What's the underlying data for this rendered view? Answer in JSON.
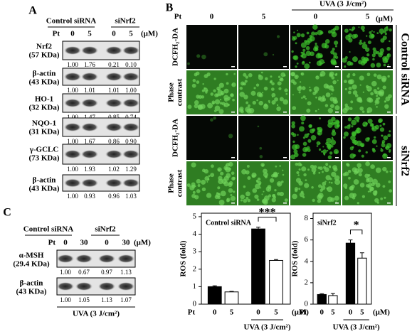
{
  "panel_a": {
    "label": "A",
    "groups": [
      "Control siRNA",
      "siNrf2"
    ],
    "pt_label": "Pt",
    "lanes": [
      "0",
      "5",
      "0",
      "5"
    ],
    "unit": "(μM)",
    "rows": [
      {
        "name": "Nrf2",
        "size": "(57 KDa)",
        "values": [
          "1.00",
          "1.76",
          "0.21",
          "0.10"
        ]
      },
      {
        "name": "β-actin",
        "size": "(43 KDa)",
        "values": [
          "1.00",
          "1.01",
          "1.01",
          "1.00"
        ]
      },
      {
        "name": "HO-1",
        "size": "(32 KDa)",
        "values": [
          "1.00",
          "1.47",
          "0.85",
          "0.74"
        ]
      },
      {
        "name": "NQO-1",
        "size": "(31 KDa)",
        "values": [
          "1.00",
          "1.67",
          "0.86",
          "0.90"
        ]
      },
      {
        "name": "γ-GCLC",
        "size": "(73 KDa)",
        "values": [
          "1.00",
          "1.93",
          "1.02",
          "1.29"
        ]
      },
      {
        "name": "β-actin",
        "size": "(43 KDa)",
        "values": [
          "1.00",
          "0.93",
          "0.96",
          "1.03"
        ]
      }
    ]
  },
  "panel_b": {
    "label": "B",
    "pt_label": "Pt",
    "lanes": [
      "0",
      "5",
      "0",
      "5"
    ],
    "unit": "(μM)",
    "uva_label": "UVA (3 J/cm²)",
    "rows": [
      [
        "DCFH₂-DA"
      ],
      [
        "Phase",
        "contrast"
      ],
      [
        "DCFH₂-DA"
      ],
      [
        "Phase",
        "contrast"
      ]
    ],
    "groups": [
      "Control siRNA",
      "siNrf2"
    ]
  },
  "panel_c": {
    "label": "C",
    "groups": [
      "Control siRNA",
      "siNrf2"
    ],
    "pt_label": "Pt",
    "lanes": [
      "0",
      "30",
      "0",
      "30"
    ],
    "unit": "(μM)",
    "rows": [
      {
        "name": "α-MSH",
        "size": "(29.4 KDa)",
        "values": [
          "1.00",
          "0.67",
          "0.97",
          "1.13"
        ]
      },
      {
        "name": "β-actin",
        "size": "(43 KDa)",
        "values": [
          "1.00",
          "1.05",
          "1.13",
          "1.07"
        ]
      }
    ],
    "footer": "UVA (3 J/cm²)"
  },
  "chart_data": [
    {
      "type": "bar",
      "title": "Control siRNA",
      "y_label": "ROS (fold)",
      "x_prefix": "Pt",
      "x_unit": "(μM)",
      "group_label": "UVA (3 J/cm²)",
      "categories": [
        "0",
        "5",
        "0",
        "5"
      ],
      "values": [
        1.0,
        0.7,
        4.3,
        2.5
      ],
      "errors": [
        0.05,
        0.03,
        0.1,
        0.05
      ],
      "colors": [
        "#000000",
        "#ffffff",
        "#000000",
        "#ffffff"
      ],
      "ylim": [
        0,
        5.2
      ],
      "yticks": [
        0,
        1,
        2,
        3,
        4,
        5
      ],
      "annotation": "***"
    },
    {
      "type": "bar",
      "title": "siNrf2",
      "y_label": "ROS (fold)",
      "x_prefix": "Pt",
      "x_unit": "(μM)",
      "group_label": "UVA (3 J/cm²)",
      "categories": [
        "0",
        "5",
        "0",
        "5"
      ],
      "values": [
        0.9,
        0.8,
        5.7,
        4.3
      ],
      "errors": [
        0.08,
        0.2,
        0.3,
        0.5
      ],
      "colors": [
        "#000000",
        "#ffffff",
        "#000000",
        "#ffffff"
      ],
      "ylim": [
        0,
        8.5
      ],
      "yticks": [
        0,
        2,
        4,
        6,
        8
      ],
      "annotation": "*"
    }
  ]
}
